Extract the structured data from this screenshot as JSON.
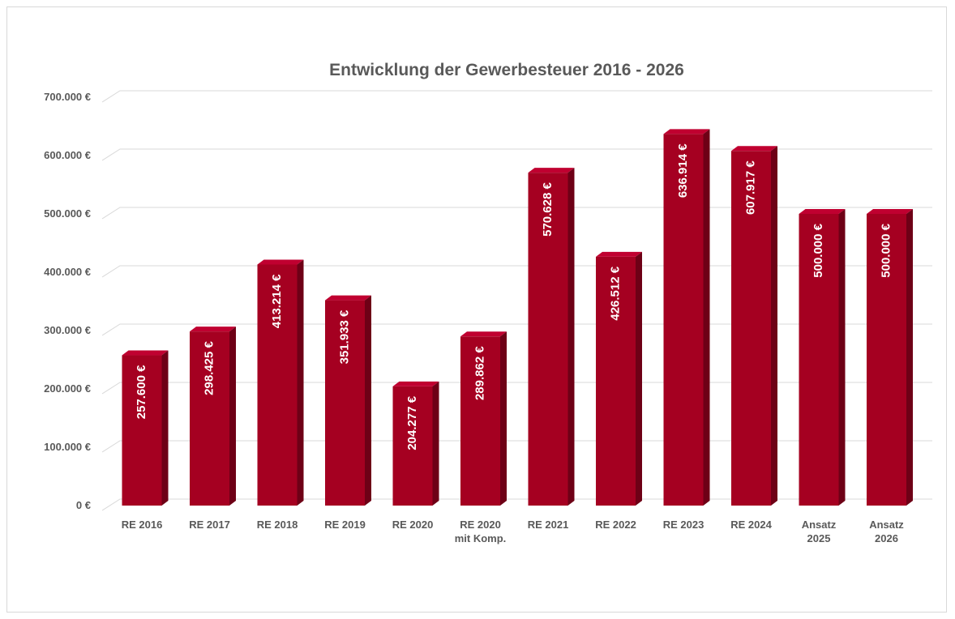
{
  "chart_data": {
    "type": "bar",
    "title": "Entwicklung der Gewerbesteuer  2016 - 2026",
    "xlabel": "",
    "ylabel": "",
    "categories": [
      [
        "RE 2016"
      ],
      [
        "RE 2017"
      ],
      [
        "RE 2018"
      ],
      [
        "RE 2019"
      ],
      [
        "RE 2020"
      ],
      [
        "RE 2020",
        "mit Komp."
      ],
      [
        "RE 2021"
      ],
      [
        "RE 2022"
      ],
      [
        "RE 2023"
      ],
      [
        "RE 2024"
      ],
      [
        "Ansatz",
        "2025"
      ],
      [
        "Ansatz",
        "2026"
      ]
    ],
    "values": [
      257600,
      298425,
      413214,
      351933,
      204277,
      289862,
      570628,
      426512,
      636914,
      607917,
      500000,
      500000
    ],
    "data_labels": [
      "257.600 €",
      "298.425 €",
      "413.214 €",
      "351.933 €",
      "204.277 €",
      "289.862 €",
      "570.628 €",
      "426.512 €",
      "636.914 €",
      "607.917 €",
      "500.000 €",
      "500.000 €"
    ],
    "y_ticks": [
      0,
      100000,
      200000,
      300000,
      400000,
      500000,
      600000,
      700000
    ],
    "y_tick_labels": [
      "0 €",
      "100.000 €",
      "200.000 €",
      "300.000 €",
      "400.000 €",
      "500.000 €",
      "600.000 €",
      "700.000 €"
    ],
    "ylim": [
      0,
      700000
    ],
    "grid": true,
    "legend": "none",
    "colors": {
      "bar": "#a50021",
      "bar_side": "#6e0016",
      "bar_top": "#c00030",
      "grid": "#d9d9d9",
      "text": "#595959"
    }
  }
}
